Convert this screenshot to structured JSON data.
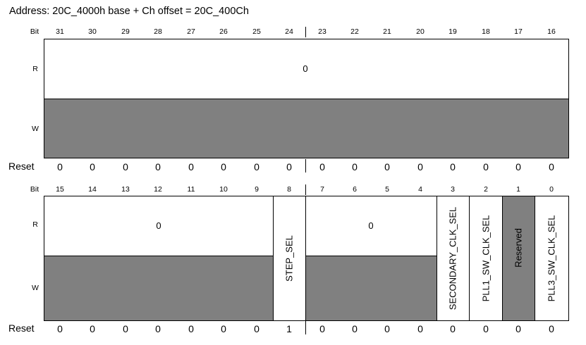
{
  "address": "Address: 20C_4000h base + Ch offset = 20C_400Ch",
  "labels": {
    "bit": "Bit",
    "read": "R",
    "write": "W",
    "reset": "Reset"
  },
  "upper": {
    "bits": [
      "31",
      "30",
      "29",
      "28",
      "27",
      "26",
      "25",
      "24",
      "23",
      "22",
      "21",
      "20",
      "19",
      "18",
      "17",
      "16"
    ],
    "read_value": "0",
    "reset": [
      "0",
      "0",
      "0",
      "0",
      "0",
      "0",
      "0",
      "0",
      "0",
      "0",
      "0",
      "0",
      "0",
      "0",
      "0",
      "0"
    ]
  },
  "lower": {
    "bits": [
      "15",
      "14",
      "13",
      "12",
      "11",
      "10",
      "9",
      "8",
      "7",
      "6",
      "5",
      "4",
      "3",
      "2",
      "1",
      "0"
    ],
    "fields": {
      "bits_15_9_read": "0",
      "step_sel": "STEP_SEL",
      "bits_7_4_read": "0",
      "secondary_clk_sel": "SECONDARY_CLK_SEL",
      "pll1_sw_clk_sel": "PLL1_SW_CLK_SEL",
      "reserved": "Reserved",
      "pll3_sw_clk_sel": "PLL3_SW_CLK_SEL"
    },
    "reset": [
      "0",
      "0",
      "0",
      "0",
      "0",
      "0",
      "0",
      "1",
      "0",
      "0",
      "0",
      "0",
      "0",
      "0",
      "0",
      "0"
    ]
  },
  "colors": {
    "writeonly_fill": "#808080",
    "readable_fill": "#ffffff",
    "border": "#000000"
  }
}
